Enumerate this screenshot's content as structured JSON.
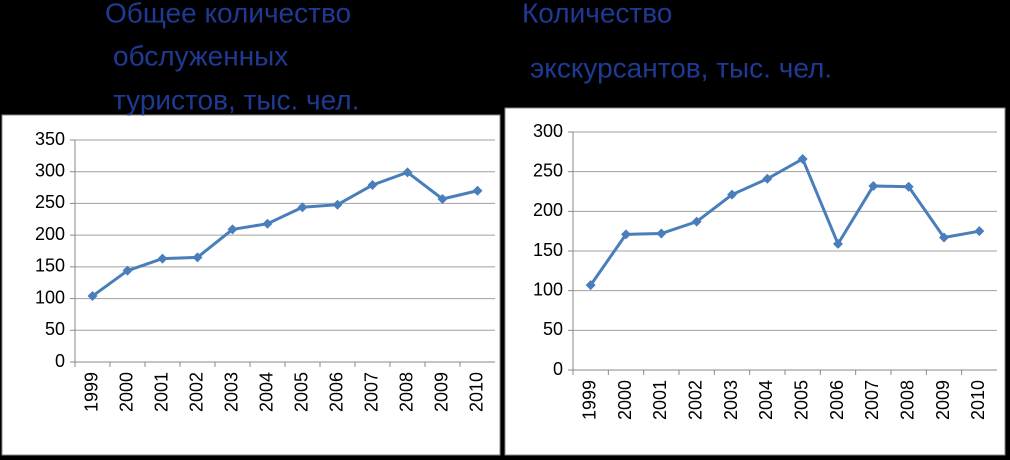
{
  "chart_data": [
    {
      "type": "line",
      "title": [
        "Общее количество",
        "обслуженных",
        "туристов, тыс. чел."
      ],
      "categories": [
        "1999",
        "2000",
        "2001",
        "2002",
        "2003",
        "2004",
        "2005",
        "2006",
        "2007",
        "2008",
        "2009",
        "2010"
      ],
      "values": [
        104,
        144,
        163,
        165,
        209,
        218,
        244,
        248,
        279,
        299,
        257,
        270
      ],
      "color": "#4a7ebb",
      "ylim": [
        0,
        350
      ],
      "yticks": [
        0,
        50,
        100,
        150,
        200,
        250,
        300,
        350
      ],
      "grid": true
    },
    {
      "type": "line",
      "title": [
        "Количество",
        "экскурсантов, тыс. чел."
      ],
      "categories": [
        "1999",
        "2000",
        "2001",
        "2002",
        "2003",
        "2004",
        "2005",
        "2006",
        "2007",
        "2008",
        "2009",
        "2010"
      ],
      "values": [
        107,
        171,
        172,
        187,
        221,
        241,
        266,
        159,
        232,
        231,
        167,
        175
      ],
      "color": "#4a7ebb",
      "ylim": [
        0,
        300
      ],
      "yticks": [
        0,
        50,
        100,
        150,
        200,
        250,
        300
      ],
      "grid": true
    }
  ]
}
